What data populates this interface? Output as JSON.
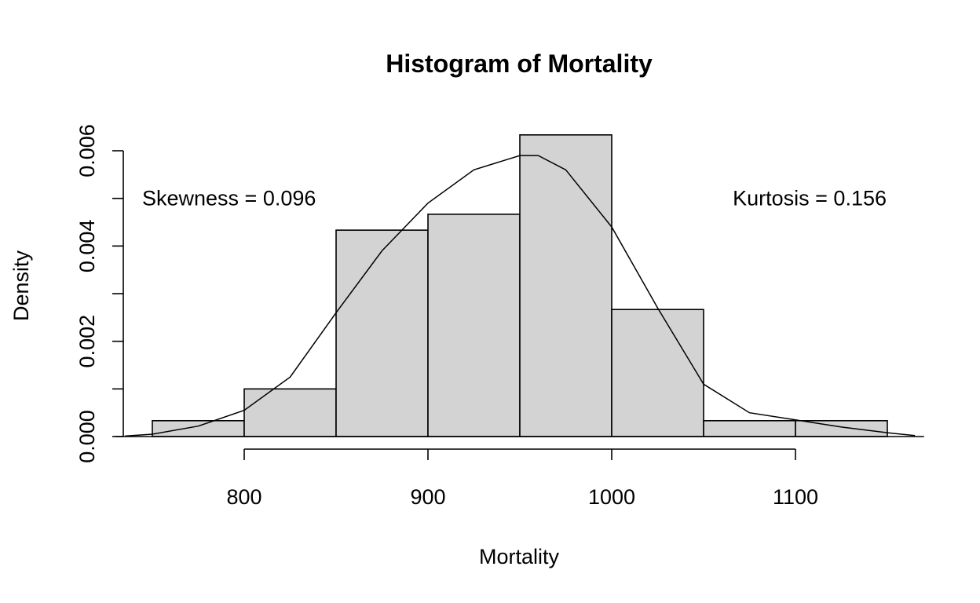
{
  "chart_data": {
    "type": "bar",
    "title": "Histogram of Mortality",
    "xlabel": "Mortality",
    "ylabel": "Density",
    "bins": [
      {
        "start": 750,
        "end": 800,
        "density": 0.000333
      },
      {
        "start": 800,
        "end": 850,
        "density": 0.001
      },
      {
        "start": 850,
        "end": 900,
        "density": 0.004333
      },
      {
        "start": 900,
        "end": 950,
        "density": 0.004667
      },
      {
        "start": 950,
        "end": 1000,
        "density": 0.006333
      },
      {
        "start": 1000,
        "end": 1050,
        "density": 0.002667
      },
      {
        "start": 1050,
        "end": 1100,
        "density": 0.000333
      },
      {
        "start": 1100,
        "end": 1150,
        "density": 0.000333
      }
    ],
    "density_curve": {
      "x": [
        735,
        750,
        775,
        800,
        825,
        850,
        875,
        900,
        925,
        950,
        960,
        975,
        1000,
        1025,
        1050,
        1075,
        1100,
        1125,
        1150,
        1165
      ],
      "y": [
        1e-05,
        5e-05,
        0.00022,
        0.00055,
        0.00125,
        0.0026,
        0.0039,
        0.0049,
        0.0056,
        0.0059,
        0.0059,
        0.0056,
        0.0044,
        0.0027,
        0.0011,
        0.0005,
        0.00035,
        0.0002,
        8e-05,
        2e-05
      ]
    },
    "xticks": [
      "800",
      "900",
      "1000",
      "1100"
    ],
    "yticks": [
      "0.000",
      "0.002",
      "0.004",
      "0.006"
    ],
    "xlim": [
      730,
      1170
    ],
    "ylim": [
      0,
      0.006
    ],
    "annotations": [
      {
        "text": "Skewness = 0.096",
        "x": 740,
        "y": 0.005
      },
      {
        "text": "Kurtosis = 0.156",
        "x": 1150,
        "y": 0.005
      }
    ],
    "grid": false,
    "legend": "none"
  }
}
